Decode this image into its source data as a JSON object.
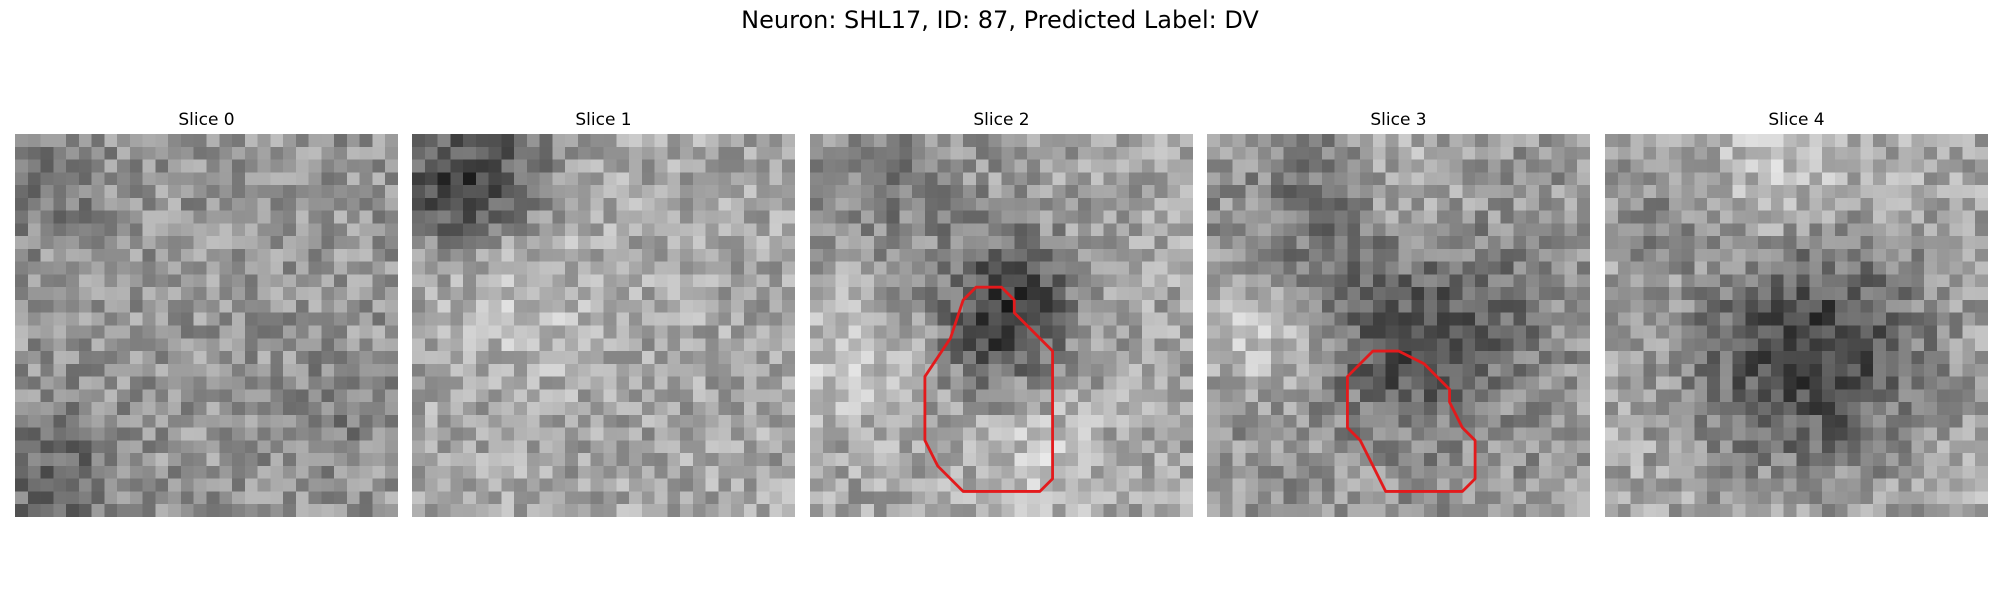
{
  "figure": {
    "title": "Neuron: SHL17, ID: 87, Predicted Label: DV"
  },
  "slices": [
    {
      "label": "Slice 0",
      "has_contour": false
    },
    {
      "label": "Slice 1",
      "has_contour": false
    },
    {
      "label": "Slice 2",
      "has_contour": true
    },
    {
      "label": "Slice 3",
      "has_contour": true
    },
    {
      "label": "Slice 4",
      "has_contour": false
    }
  ],
  "colors": {
    "contour": "#e31a1c",
    "background": "#ffffff",
    "colormap": "grayscale"
  }
}
